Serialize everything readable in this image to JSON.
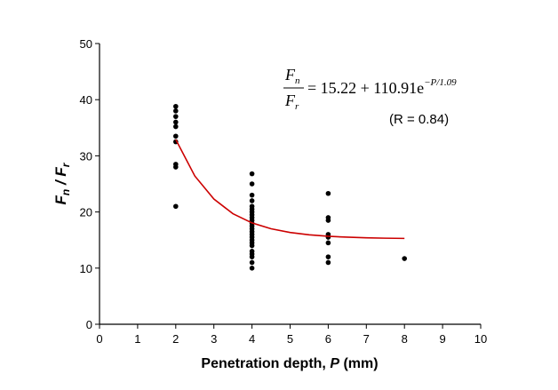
{
  "chart_data": {
    "type": "scatter",
    "x_label": {
      "text": "Penetration depth, ",
      "symbol": "P",
      "unit": " (mm)"
    },
    "y_label": {
      "numerator": "F",
      "numerator_sub": "n",
      "slash": " / ",
      "denominator": "F",
      "denominator_sub": "r"
    },
    "equation": {
      "numerator": "F",
      "numerator_sub": "n",
      "denominator": "F",
      "denominator_sub": "r",
      "rhs": "= 15.22 + 110.91e",
      "exponent": "−P/1.09"
    },
    "annotation": "(R = 0.84)",
    "xlim": [
      0,
      10
    ],
    "xticks": [
      0,
      1,
      2,
      3,
      4,
      5,
      6,
      7,
      8,
      9,
      10
    ],
    "ylim": [
      0,
      50
    ],
    "yticks": [
      0,
      10,
      20,
      30,
      40,
      50
    ],
    "series": [
      {
        "type": "scatter",
        "color": "#000000",
        "x": [
          2,
          2,
          2,
          2,
          2,
          2,
          2,
          2,
          2,
          2,
          4,
          4,
          4,
          4,
          4,
          4,
          4,
          4,
          4,
          4,
          4,
          4,
          4,
          4,
          4,
          4,
          4,
          4,
          4,
          4,
          4,
          4,
          4,
          4,
          6,
          6,
          6,
          6,
          6,
          6,
          6,
          6,
          8
        ],
        "values": [
          38.8,
          38.0,
          37.0,
          36.0,
          35.2,
          33.5,
          32.5,
          28.5,
          28.0,
          21.0,
          26.8,
          25.0,
          23.0,
          22.0,
          21.0,
          20.5,
          20.0,
          19.5,
          19.0,
          18.5,
          18.0,
          17.5,
          17.0,
          16.5,
          16.0,
          15.5,
          15.0,
          14.5,
          14.0,
          13.0,
          12.5,
          12.0,
          11.0,
          10.0,
          23.3,
          19.0,
          18.5,
          16.0,
          15.5,
          14.5,
          12.0,
          11.0,
          11.7
        ]
      },
      {
        "type": "line",
        "color": "#cc0000",
        "x": [
          2,
          2.5,
          3,
          3.5,
          4,
          4.5,
          5,
          5.5,
          6,
          6.5,
          7,
          7.5,
          8
        ],
        "values": [
          32.92,
          26.41,
          22.3,
          19.69,
          18.05,
          17.01,
          16.35,
          15.93,
          15.67,
          15.51,
          15.4,
          15.33,
          15.29
        ]
      }
    ]
  }
}
